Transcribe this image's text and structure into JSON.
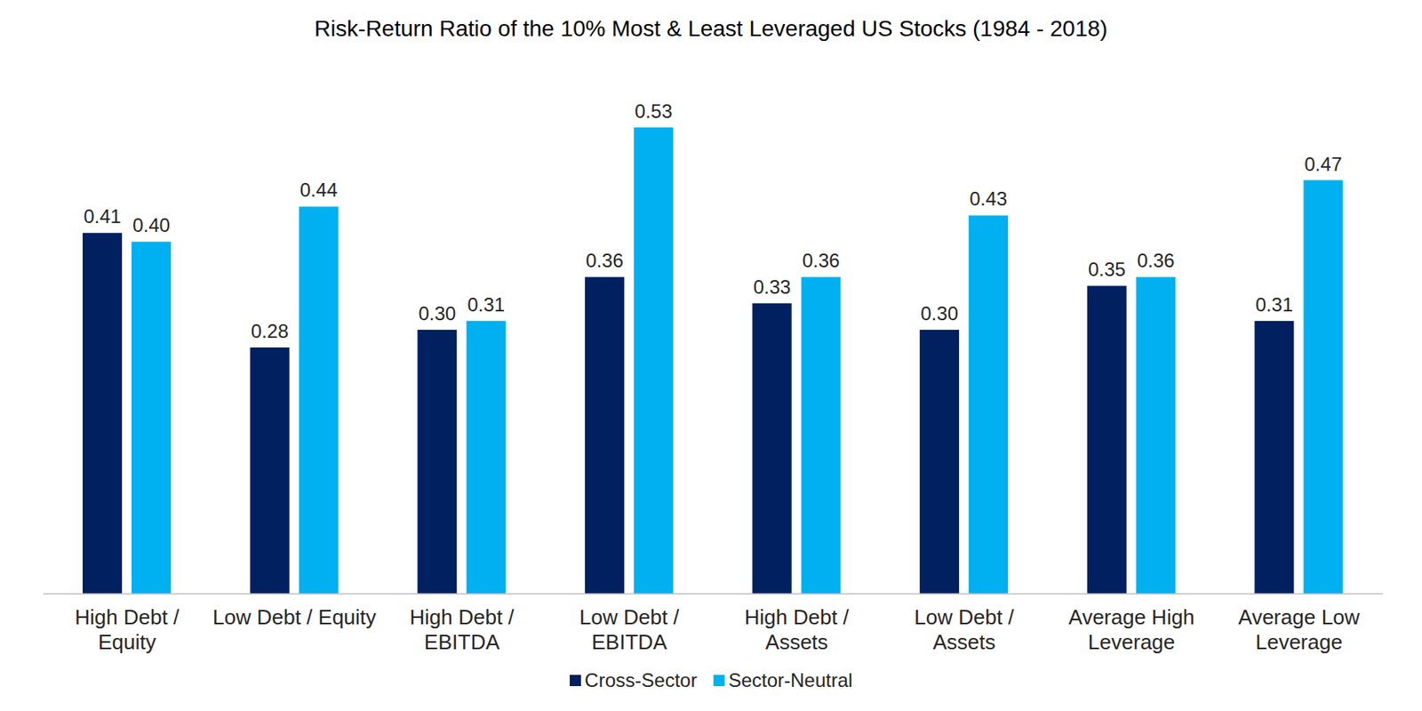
{
  "chart_data": {
    "type": "bar",
    "title": "Risk-Return Ratio of the 10% Most & Least Leveraged US Stocks (1984 - 2018)",
    "categories": [
      "High Debt / Equity",
      "Low Debt / Equity",
      "High Debt / EBITDA",
      "Low Debt / EBITDA",
      "High Debt / Assets",
      "Low Debt / Assets",
      "Average High Leverage",
      "Average Low Leverage"
    ],
    "series": [
      {
        "name": "Cross-Sector",
        "color": "#002060",
        "values": [
          0.41,
          0.28,
          0.3,
          0.36,
          0.33,
          0.3,
          0.35,
          0.31
        ],
        "value_labels": [
          "0.41",
          "0.28",
          "0.30",
          "0.36",
          "0.33",
          "0.30",
          "0.35",
          "0.31"
        ]
      },
      {
        "name": "Sector-Neutral",
        "color": "#00B0F0",
        "values": [
          0.4,
          0.44,
          0.31,
          0.53,
          0.36,
          0.43,
          0.36,
          0.47
        ],
        "value_labels": [
          "0.40",
          "0.44",
          "0.31",
          "0.53",
          "0.36",
          "0.43",
          "0.36",
          "0.47"
        ]
      }
    ],
    "ylim": [
      0,
      0.6
    ],
    "data_labels": true,
    "tick_labels": "x",
    "legend": "bottom",
    "grid": false
  }
}
